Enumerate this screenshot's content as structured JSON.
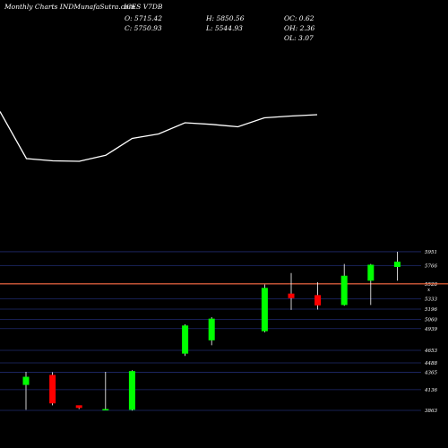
{
  "header": {
    "source": "Monthly Charts INDMunafaSutra.com",
    "symbol": "ICES V7DB",
    "open": "O: 5715.42",
    "high": "H: 5850.56",
    "oc": "OC: 0.62",
    "close": "C: 5750.93",
    "low": "L: 5544.93",
    "oh": "OH: 2.36",
    "ol": "OL: 3.07"
  },
  "chart_data": [
    {
      "type": "line",
      "name": "price-line",
      "note_values": "relative shape only; no axis is printed for this panel",
      "values": [
        5850,
        5640,
        5630,
        5628,
        5655,
        5730,
        5750,
        5800,
        5793,
        5782,
        5822,
        5830,
        5836
      ],
      "ylim": [
        5500,
        5900
      ],
      "color": "#ffffff"
    },
    {
      "type": "candlestick",
      "name": "candles",
      "y_ticks": [
        {
          "value": 5951,
          "label": "5951"
        },
        {
          "value": 5766,
          "label": "5766"
        },
        {
          "value": 5528,
          "label": "5528"
        },
        {
          "value": 5333,
          "label": "5333"
        },
        {
          "value": 5196,
          "label": "5196"
        },
        {
          "value": 5060,
          "label": "5060"
        },
        {
          "value": 4939,
          "label": "4939"
        },
        {
          "value": 4653,
          "label": "4653"
        },
        {
          "value": 4488,
          "label": "4488"
        },
        {
          "value": 4365,
          "label": "4365"
        },
        {
          "value": 4136,
          "label": "4136"
        },
        {
          "value": 3863,
          "label": "3863"
        }
      ],
      "reference_line": {
        "value": 5528,
        "label": "5528",
        "color": "#ff6a3d"
      },
      "reference_marker": "x",
      "ylim": [
        3863,
        6080
      ],
      "up_color": "#00ff00",
      "down_color": "#ff0000",
      "candles": [
        {
          "open": 4198,
          "close": 4305,
          "high": 4370,
          "low": 3870
        },
        {
          "open": 4330,
          "close": 3955,
          "high": 4365,
          "low": 3930
        },
        {
          "open": 3930,
          "close": 3895,
          "high": 3920,
          "low": 3880
        },
        {
          "open": 3880,
          "close": 3880,
          "high": 4370,
          "low": 3870
        },
        {
          "open": 3870,
          "close": 4380,
          "high": 4390,
          "low": 3860
        },
        null,
        {
          "open": 4610,
          "close": 4980,
          "high": 4995,
          "low": 4580
        },
        {
          "open": 4785,
          "close": 5070,
          "high": 5090,
          "low": 4720
        },
        null,
        {
          "open": 4905,
          "close": 5475,
          "high": 5520,
          "low": 4890
        },
        {
          "open": 5400,
          "close": 5340,
          "high": 5670,
          "low": 5185
        },
        {
          "open": 5380,
          "close": 5245,
          "high": 5550,
          "low": 5190
        },
        {
          "open": 5250,
          "close": 5635,
          "high": 5790,
          "low": 5240
        },
        {
          "open": 5570,
          "close": 5780,
          "high": 5790,
          "low": 5250
        },
        {
          "open": 5750,
          "close": 5820,
          "high": 5950,
          "low": 5570
        }
      ]
    }
  ]
}
